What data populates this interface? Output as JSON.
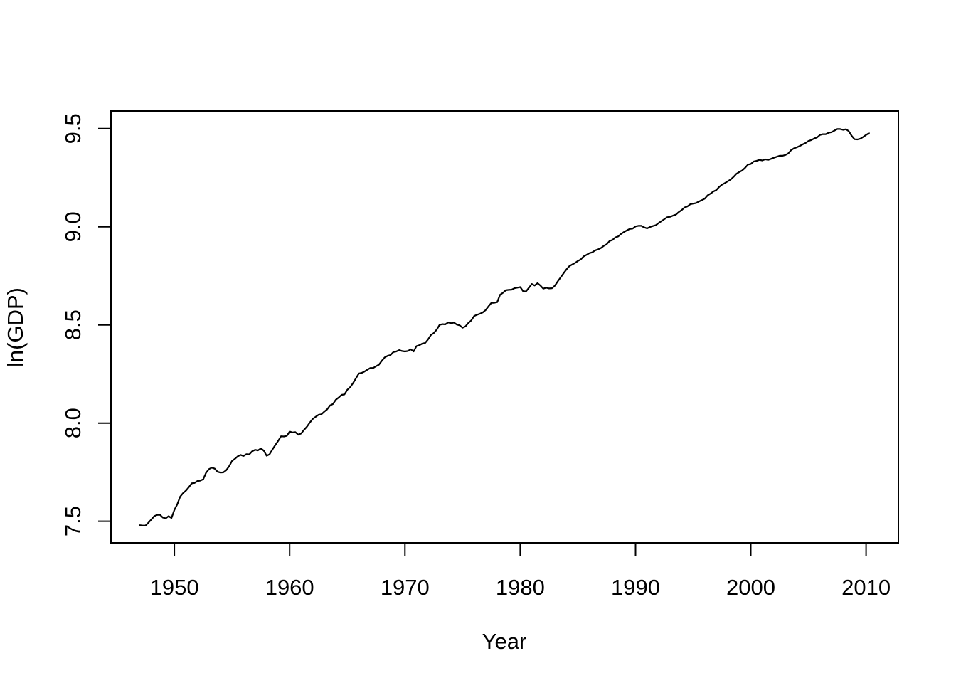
{
  "figure": {
    "background": "#ffffff",
    "foreground": "#000000",
    "description": "R base-graphics line plot of quarterly log US real GDP"
  },
  "chart_data": {
    "type": "line",
    "title": "",
    "xlabel": "Year",
    "ylabel": "ln(GDP)",
    "grid": false,
    "legend_position": "none",
    "line_color": "#000000",
    "background": "#ffffff",
    "xlim": [
      1944.5,
      2012.8
    ],
    "ylim": [
      7.39,
      9.59
    ],
    "x_ticks": [
      1950,
      1960,
      1970,
      1980,
      1990,
      2000,
      2010
    ],
    "x_tick_labels": [
      "1950",
      "1960",
      "1970",
      "1980",
      "1990",
      "2000",
      "2010"
    ],
    "y_ticks": [
      7.5,
      8.0,
      8.5,
      9.0,
      9.5
    ],
    "y_tick_labels": [
      "7.5",
      "8.0",
      "8.5",
      "9.0",
      "9.5"
    ],
    "x_start": 1947.0,
    "x_step": 0.25,
    "frequency": "quarterly",
    "series": [
      {
        "name": "ln(GDP)",
        "values": [
          7.48,
          7.478,
          7.478,
          7.493,
          7.509,
          7.526,
          7.532,
          7.533,
          7.519,
          7.515,
          7.526,
          7.517,
          7.557,
          7.586,
          7.625,
          7.643,
          7.656,
          7.673,
          7.693,
          7.695,
          7.705,
          7.707,
          7.714,
          7.747,
          7.766,
          7.773,
          7.768,
          7.752,
          7.748,
          7.749,
          7.76,
          7.78,
          7.807,
          7.818,
          7.831,
          7.838,
          7.833,
          7.842,
          7.841,
          7.857,
          7.864,
          7.861,
          7.871,
          7.86,
          7.834,
          7.841,
          7.865,
          7.888,
          7.909,
          7.933,
          7.932,
          7.935,
          7.957,
          7.952,
          7.954,
          7.941,
          7.947,
          7.966,
          7.982,
          8.003,
          8.021,
          8.032,
          8.042,
          8.045,
          8.058,
          8.07,
          8.09,
          8.097,
          8.119,
          8.13,
          8.144,
          8.146,
          8.17,
          8.183,
          8.204,
          8.228,
          8.253,
          8.256,
          8.263,
          8.272,
          8.281,
          8.281,
          8.29,
          8.298,
          8.318,
          8.335,
          8.343,
          8.347,
          8.362,
          8.365,
          8.372,
          8.367,
          8.365,
          8.367,
          8.376,
          8.365,
          8.392,
          8.397,
          8.405,
          8.408,
          8.426,
          8.449,
          8.459,
          8.476,
          8.5,
          8.504,
          8.503,
          8.513,
          8.509,
          8.512,
          8.502,
          8.498,
          8.486,
          8.493,
          8.51,
          8.523,
          8.545,
          8.552,
          8.557,
          8.564,
          8.576,
          8.595,
          8.613,
          8.613,
          8.616,
          8.654,
          8.664,
          8.677,
          8.679,
          8.68,
          8.687,
          8.69,
          8.693,
          8.672,
          8.671,
          8.689,
          8.709,
          8.701,
          8.713,
          8.701,
          8.685,
          8.69,
          8.686,
          8.687,
          8.7,
          8.722,
          8.742,
          8.763,
          8.782,
          8.799,
          8.808,
          8.816,
          8.826,
          8.834,
          8.849,
          8.857,
          8.866,
          8.87,
          8.88,
          8.885,
          8.892,
          8.903,
          8.911,
          8.928,
          8.933,
          8.946,
          8.951,
          8.964,
          8.974,
          8.982,
          8.989,
          8.991,
          9.002,
          9.005,
          9.005,
          8.997,
          8.992,
          8.999,
          9.004,
          9.008,
          9.019,
          9.029,
          9.039,
          9.049,
          9.051,
          9.057,
          9.062,
          9.075,
          9.085,
          9.098,
          9.104,
          9.115,
          9.118,
          9.121,
          9.129,
          9.136,
          9.143,
          9.16,
          9.169,
          9.18,
          9.187,
          9.203,
          9.215,
          9.223,
          9.232,
          9.241,
          9.254,
          9.27,
          9.279,
          9.287,
          9.3,
          9.317,
          9.32,
          9.333,
          9.336,
          9.341,
          9.338,
          9.344,
          9.341,
          9.346,
          9.352,
          9.357,
          9.362,
          9.362,
          9.366,
          9.374,
          9.391,
          9.4,
          9.405,
          9.412,
          9.42,
          9.427,
          9.437,
          9.442,
          9.45,
          9.455,
          9.468,
          9.472,
          9.472,
          9.479,
          9.482,
          9.49,
          9.498,
          9.498,
          9.494,
          9.497,
          9.487,
          9.463,
          9.446,
          9.445,
          9.449,
          9.458,
          9.468,
          9.477
        ]
      }
    ]
  }
}
